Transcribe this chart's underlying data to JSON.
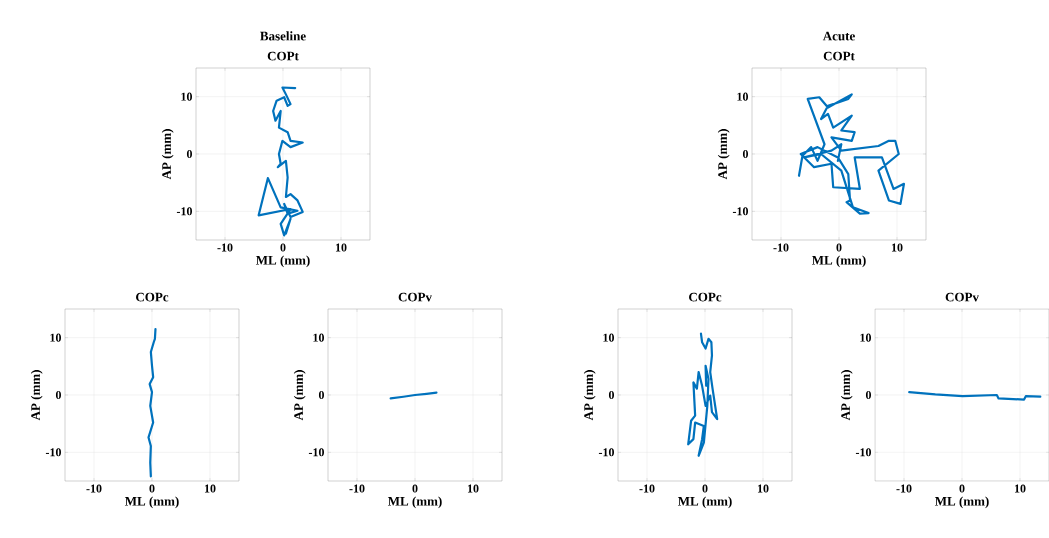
{
  "chart_data": [
    {
      "type": "line",
      "title": "Baseline",
      "subtitle": "COPt",
      "xlabel": "ML (mm)",
      "ylabel": "AP (mm)",
      "color": "#0072bd",
      "grid": true,
      "xlim": [
        -15,
        15
      ],
      "ylim": [
        -15,
        15
      ],
      "xticks": [
        -10,
        0,
        10
      ],
      "yticks": [
        -10,
        0,
        10
      ],
      "x": [
        2.1,
        -0.1,
        0.5,
        1.3,
        0.8,
        0.2,
        -1.1,
        -1.7,
        -1.3,
        -0.4,
        -0.7,
        0.8,
        1.3,
        3.4,
        1.3,
        -0.1,
        -0.7,
        -0.4,
        -0.9,
        0.5,
        0.8,
        0.5,
        1.3,
        2.5,
        3.4,
        1.3,
        0.2,
        0.8,
        2.5,
        -0.4,
        -2.6,
        -4.2,
        1.3,
        -0.4,
        0.2,
        1.3,
        0.5
      ],
      "values": [
        11.5,
        11.6,
        10.4,
        8.7,
        8.4,
        9.9,
        9.3,
        7.5,
        5.8,
        7.5,
        4.6,
        3.8,
        2.3,
        2.0,
        1.2,
        2.3,
        0,
        -1.7,
        -2.3,
        -1.2,
        -4.1,
        -7.5,
        -7.0,
        -8.1,
        -10.1,
        -11.0,
        -8.7,
        -10.4,
        -9.9,
        -9.3,
        -4.2,
        -10.7,
        -9.6,
        -12.2,
        -14.2,
        -11.3,
        -13.9
      ]
    },
    {
      "type": "line",
      "title": "Acute",
      "subtitle": "COPt",
      "xlabel": "ML (mm)",
      "ylabel": "AP (mm)",
      "color": "#0072bd",
      "grid": true,
      "xlim": [
        -15,
        15
      ],
      "ylim": [
        -15,
        15
      ],
      "xticks": [
        -10,
        0,
        10
      ],
      "yticks": [
        -10,
        0,
        10
      ],
      "x": [
        -6.9,
        -6.3,
        -4.8,
        -3.7,
        -2.5,
        -5.4,
        -3.4,
        -1.9,
        2.2,
        1.6,
        -1.9,
        -3.1,
        -1.9,
        -1.0,
        2.2,
        0.4,
        2.7,
        2.2,
        -1.3,
        0.4,
        6.8,
        8.6,
        9.7,
        10.3,
        6.8,
        8.6,
        10.6,
        11.2,
        9.4,
        7.4,
        2.7,
        3.6,
        -1.0,
        -1.3,
        -4.3,
        -6.6,
        -3.7,
        -0.2,
        1.6,
        1.9,
        1.3,
        3.6,
        5.1,
        2.4,
        0.4,
        -3.1,
        -6.0,
        -1.3,
        0.4,
        -0.2
      ],
      "values": [
        -3.8,
        -0.3,
        1.2,
        -1.2,
        1.7,
        9.6,
        9.9,
        8.1,
        10.4,
        9.6,
        8.4,
        6.1,
        7.0,
        4.6,
        6.7,
        4.1,
        3.8,
        2.3,
        2.9,
        0.6,
        1.4,
        2.3,
        2.3,
        0,
        -2.9,
        -8.1,
        -8.7,
        -5.2,
        -6.1,
        -0.6,
        -0.6,
        -6.1,
        -5.8,
        -1.7,
        -2.3,
        0,
        1.2,
        -0.6,
        -3.5,
        -8.1,
        -8.4,
        -10.4,
        -10.3,
        -9.3,
        -2.9,
        0,
        -0.6,
        0.6,
        1.7,
        -1.2
      ]
    },
    {
      "type": "line",
      "title": "COPc",
      "xlabel": "ML (mm)",
      "ylabel": "AP (mm)",
      "color": "#0072bd",
      "grid": true,
      "xlim": [
        -15,
        15
      ],
      "ylim": [
        -15,
        15
      ],
      "xticks": [
        -10,
        0,
        10
      ],
      "yticks": [
        -10,
        0,
        10
      ],
      "x": [
        0.6,
        0.5,
        0.3,
        -0.2,
        0,
        0.2,
        -0.4,
        0,
        -0.3,
        0.2,
        -0.6,
        -0.2,
        -0.3,
        -0.2
      ],
      "values": [
        11.5,
        9.8,
        9.2,
        7.5,
        5.1,
        3.1,
        1.9,
        0.5,
        -1.9,
        -4.8,
        -7.4,
        -8.9,
        -11.8,
        -14.2
      ]
    },
    {
      "type": "line",
      "title": "COPv",
      "xlabel": "ML (mm)",
      "ylabel": "AP (mm)",
      "color": "#0072bd",
      "grid": true,
      "xlim": [
        -15,
        15
      ],
      "ylim": [
        -15,
        15
      ],
      "xticks": [
        -10,
        0,
        10
      ],
      "yticks": [
        -10,
        0,
        10
      ],
      "x": [
        -4.2,
        -2,
        0,
        2,
        3.7
      ],
      "values": [
        -0.6,
        -0.3,
        0,
        0.2,
        0.4
      ]
    },
    {
      "type": "line",
      "title": "COPc",
      "xlabel": "ML (mm)",
      "ylabel": "AP (mm)",
      "color": "#0072bd",
      "grid": true,
      "xlim": [
        -15,
        15
      ],
      "ylim": [
        -15,
        15
      ],
      "xticks": [
        -10,
        0,
        10
      ],
      "yticks": [
        -10,
        0,
        10
      ],
      "x": [
        -0.7,
        -0.5,
        0.1,
        0.6,
        1.1,
        1.2,
        0.9,
        1.3,
        2.1,
        1.2,
        0.9,
        0.1,
        -0.5,
        -1.1,
        -1.4,
        -2.0,
        -1.7,
        -2.4,
        -2.9,
        -2.0,
        -1.7,
        -0.2,
        -0.5,
        -1.1,
        -0.2,
        0.4,
        0.6,
        0.1,
        0.2
      ],
      "values": [
        10.7,
        9.2,
        8.1,
        9.8,
        9.2,
        6.9,
        4.0,
        1.1,
        -4.2,
        -3.0,
        -0.1,
        -1.9,
        1.6,
        4.0,
        1.1,
        2.2,
        -3.6,
        -4.5,
        -8.6,
        -7.7,
        -4.8,
        -5.4,
        -7.7,
        -10.6,
        -8.3,
        -1.9,
        2.8,
        5.1,
        1.6
      ]
    },
    {
      "type": "line",
      "title": "COPv",
      "xlabel": "ML (mm)",
      "ylabel": "AP (mm)",
      "color": "#0072bd",
      "grid": true,
      "xlim": [
        -15,
        15
      ],
      "ylim": [
        -15,
        15
      ],
      "xticks": [
        -10,
        0,
        10
      ],
      "yticks": [
        -10,
        0,
        10
      ],
      "x": [
        -9.1,
        -4.6,
        0.1,
        6.0,
        6.3,
        10.7,
        11.0,
        13.5
      ],
      "values": [
        0.5,
        0.1,
        -0.2,
        0.0,
        -0.6,
        -0.8,
        -0.2,
        -0.3
      ]
    }
  ]
}
